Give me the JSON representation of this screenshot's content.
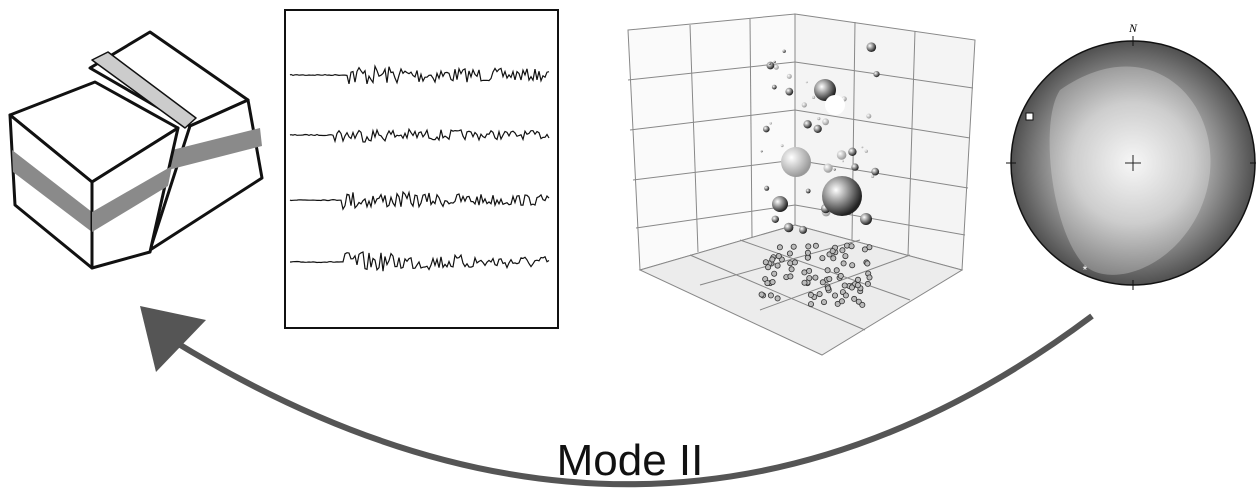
{
  "stereonet": {
    "north_label": "N"
  },
  "label": "Mode II"
}
